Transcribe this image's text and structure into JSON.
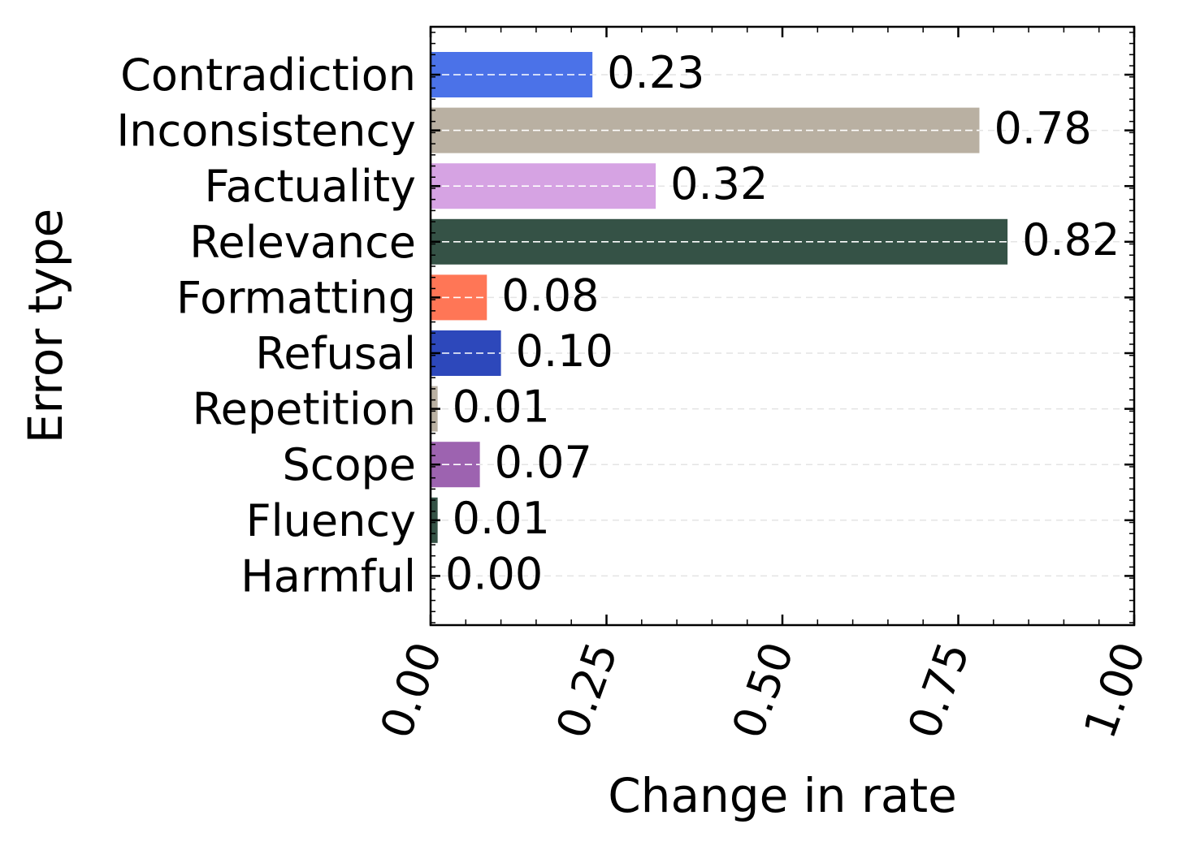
{
  "chart_data": {
    "type": "bar",
    "orientation": "horizontal",
    "title": "",
    "xlabel": "Change in rate",
    "ylabel": "Error type",
    "categories": [
      "Contradiction",
      "Inconsistency",
      "Factuality",
      "Relevance",
      "Formatting",
      "Refusal",
      "Repetition",
      "Scope",
      "Fluency",
      "Harmful"
    ],
    "values": [
      0.23,
      0.78,
      0.32,
      0.82,
      0.08,
      0.1,
      0.01,
      0.07,
      0.01,
      0.0
    ],
    "value_labels": [
      "0.23",
      "0.78",
      "0.32",
      "0.82",
      "0.08",
      "0.10",
      "0.01",
      "0.07",
      "0.01",
      "0.00"
    ],
    "colors": [
      "#4b72e8",
      "#b9b0a2",
      "#d6a3e3",
      "#355246",
      "#ff7656",
      "#2d48bb",
      "#b9b0a2",
      "#9d63b0",
      "#355246",
      "#9d63b0"
    ],
    "xlim": [
      0,
      1
    ],
    "xticks": [
      0,
      0.25,
      0.5,
      0.75,
      1
    ],
    "xtick_labels": [
      "0.00",
      "0.25",
      "0.50",
      "0.75",
      "1.00"
    ],
    "grid": true,
    "legend": "none"
  }
}
